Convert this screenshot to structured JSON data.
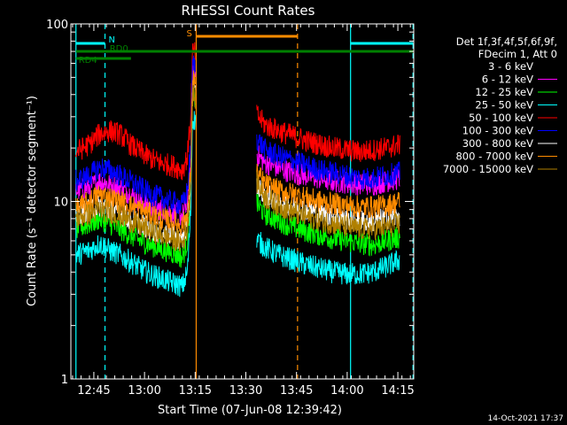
{
  "chart_data": {
    "type": "line",
    "title": "RHESSI Count Rates",
    "xlabel": "Start Time (07-Jun-08 12:39:42)",
    "ylabel": "Count Rate (s⁻¹ detector segment⁻¹)",
    "y_scale": "log",
    "ylim": [
      1,
      100
    ],
    "xlim_minutes_after_start": [
      -1.5,
      100
    ],
    "x_ticks": [
      {
        "label": "12:45",
        "minutes": 5.3
      },
      {
        "label": "13:00",
        "minutes": 20.3
      },
      {
        "label": "13:15",
        "minutes": 35.3
      },
      {
        "label": "13:30",
        "minutes": 50.3
      },
      {
        "label": "13:45",
        "minutes": 65.3
      },
      {
        "label": "14:00",
        "minutes": 80.3
      },
      {
        "label": "14:15",
        "minutes": 95.3
      }
    ],
    "y_ticks": [
      "1",
      "10",
      "100"
    ],
    "legend_header": [
      "Det 1f,3f,4f,5f,6f,9f,",
      "FDecim 1, Att 0"
    ],
    "legend_placement": "right",
    "x_minutes": [
      0,
      4,
      7,
      10,
      13,
      16,
      19,
      22,
      25,
      28,
      30,
      31.5,
      33,
      34,
      34.5,
      54,
      56,
      60,
      64,
      68,
      72,
      76,
      80,
      84,
      88,
      92,
      96
    ],
    "gap_minutes": [
      35.5,
      53.5
    ],
    "series": [
      {
        "name": "3 - 6 keV",
        "color": "#000000",
        "values": [
          9.5,
          10,
          10.5,
          10,
          9.5,
          8.5,
          7.5,
          6.8,
          6.3,
          6,
          5.8,
          5.6,
          7,
          14,
          45,
          15,
          12,
          10.5,
          9.5,
          8.8,
          8.2,
          7.7,
          7.3,
          7,
          6.8,
          7.2,
          7.5
        ]
      },
      {
        "name": "6 - 12 keV",
        "color": "#ff00ff",
        "values": [
          11.5,
          12,
          13,
          12.5,
          12,
          11,
          10,
          9.5,
          9,
          8.7,
          8.5,
          8.3,
          9.5,
          18,
          55,
          18,
          16.5,
          15.5,
          14.5,
          14,
          13.5,
          13,
          12.8,
          12.5,
          12.5,
          13,
          13.5
        ]
      },
      {
        "name": "12 - 25 keV",
        "color": "#00ff00",
        "values": [
          7,
          7.5,
          8,
          7.5,
          7,
          6.5,
          6,
          5.7,
          5.4,
          5.2,
          5,
          4.8,
          6,
          12,
          40,
          9.5,
          8.5,
          7.8,
          7.2,
          6.8,
          6.5,
          6.2,
          6,
          5.8,
          5.7,
          6,
          6.3
        ]
      },
      {
        "name": "25 - 50 keV",
        "color": "#00ffff",
        "values": [
          5,
          5.3,
          5.8,
          5.3,
          5,
          4.6,
          4.2,
          3.9,
          3.7,
          3.5,
          3.4,
          3.3,
          4,
          9,
          30,
          6,
          5.5,
          5,
          4.7,
          4.4,
          4.2,
          4,
          3.9,
          3.9,
          4,
          4.3,
          4.7
        ]
      },
      {
        "name": "50 - 100 keV",
        "color": "#ff0000",
        "values": [
          19,
          21,
          24,
          25,
          24,
          21,
          19,
          17.5,
          16.5,
          16,
          15.5,
          15,
          18,
          30,
          70,
          30,
          27,
          25,
          23.5,
          22,
          21,
          20,
          19.5,
          19,
          19.5,
          20,
          21
        ]
      },
      {
        "name": "100 - 300 keV",
        "color": "#0000ff",
        "values": [
          13,
          14,
          15.5,
          15,
          14,
          13,
          12,
          11,
          10.5,
          10,
          9.8,
          9.5,
          11.5,
          20,
          60,
          22,
          19.5,
          18,
          17,
          16,
          15,
          14.5,
          14,
          13.5,
          13.5,
          14,
          14.5
        ]
      },
      {
        "name": "300 - 800 keV",
        "color": "#ffffff",
        "values": [
          8.5,
          9,
          9.5,
          9,
          8.5,
          8,
          7.5,
          7,
          6.7,
          6.5,
          6.3,
          6.1,
          7.3,
          13,
          42,
          12,
          11,
          10,
          9.5,
          9,
          8.6,
          8.3,
          8,
          7.8,
          7.7,
          8,
          8.3
        ]
      },
      {
        "name": "800 - 7000 keV",
        "color": "#ff8c00",
        "values": [
          9,
          10,
          11,
          10.5,
          10,
          9.5,
          9,
          8.5,
          8,
          7.8,
          7.5,
          7.3,
          8.5,
          15,
          50,
          14,
          12.5,
          11.5,
          11,
          10.5,
          10,
          9.7,
          9.5,
          9.3,
          9.3,
          9.5,
          10
        ]
      },
      {
        "name": "7000 - 15000 keV",
        "color": "#b08000",
        "values": [
          8,
          8.5,
          9,
          8.7,
          8.3,
          7.8,
          7.2,
          6.8,
          6.5,
          6.2,
          6,
          5.8,
          7,
          12,
          40,
          12.5,
          10.5,
          9.5,
          8.8,
          8.2,
          7.8,
          7.5,
          7.2,
          7,
          7,
          7.2,
          7.5
        ]
      }
    ],
    "annotations": {
      "vertical_lines": [
        {
          "minutes": 0,
          "color": "#00ffff",
          "style": "solid"
        },
        {
          "minutes": 8.6,
          "color": "#00ffff",
          "style": "dashed"
        },
        {
          "minutes": 35.6,
          "color": "#ff8c00",
          "style": "solid"
        },
        {
          "minutes": 65.6,
          "color": "#ff8c00",
          "style": "dashed"
        },
        {
          "minutes": 81.3,
          "color": "#00ffff",
          "style": "solid"
        },
        {
          "minutes": 99.8,
          "color": "#00ffff",
          "style": "dashed"
        }
      ],
      "horizontal_bars": [
        {
          "label": "N",
          "color": "#00ffff",
          "from": 0,
          "to": 8.6,
          "level": 1
        },
        {
          "label": "",
          "color": "#00ffff",
          "from": 81.3,
          "to": 99.8,
          "level": 1
        },
        {
          "label": "S",
          "color": "#ff8c00",
          "from": 35.6,
          "to": 65.6,
          "level": 0
        },
        {
          "label": "RD0",
          "color": "#008000",
          "from": 0,
          "to": 20.3,
          "level": 2
        },
        {
          "label": "",
          "color": "#008000",
          "from": 16.3,
          "to": 99.8,
          "level": 2
        },
        {
          "label": "RD4",
          "color": "#008000",
          "from": 0,
          "to": 16.3,
          "level": 3
        }
      ]
    },
    "footer_timestamp": "14-Oct-2021 17:37"
  }
}
